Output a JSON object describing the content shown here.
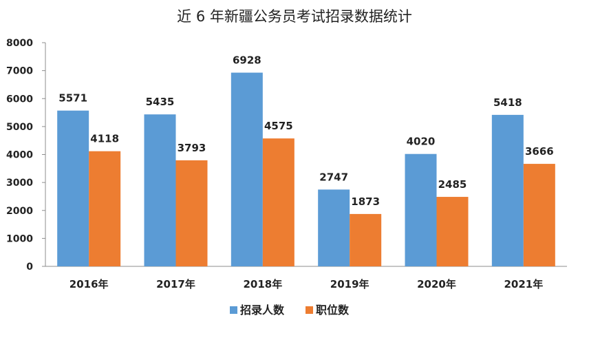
{
  "chart_data": {
    "type": "bar",
    "title": "近 6 年新疆公务员考试招录数据统计",
    "categories": [
      "2016年",
      "2017年",
      "2018年",
      "2019年",
      "2020年",
      "2021年"
    ],
    "series": [
      {
        "name": "招录人数",
        "color": "#5B9BD5",
        "values": [
          5571,
          5435,
          6928,
          2747,
          4020,
          5418
        ]
      },
      {
        "name": "职位数",
        "color": "#ED7D31",
        "values": [
          4118,
          3793,
          4575,
          1873,
          2485,
          3666
        ]
      }
    ],
    "ylim": [
      0,
      8000
    ],
    "yticks": [
      0,
      1000,
      2000,
      3000,
      4000,
      5000,
      6000,
      7000,
      8000
    ],
    "grid": false,
    "legend": "bottom"
  }
}
